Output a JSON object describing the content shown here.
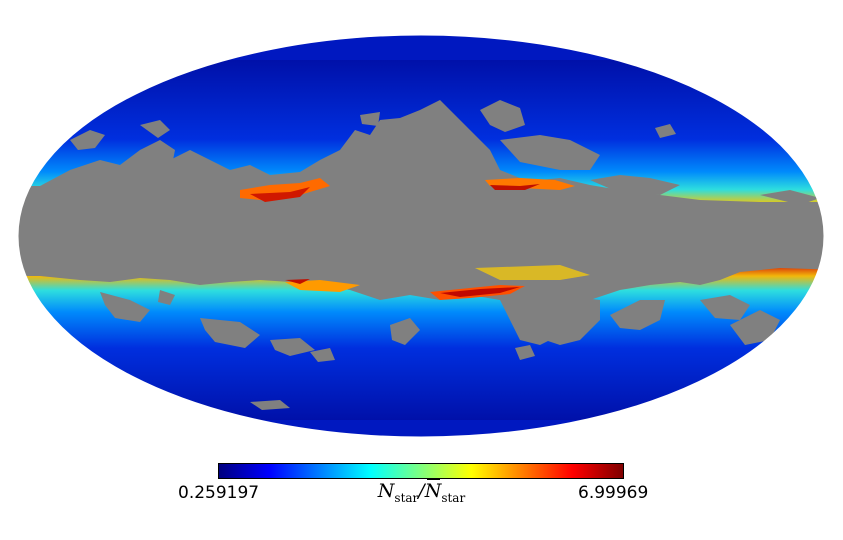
{
  "projection": "mollweide",
  "map": {
    "description_colors": {
      "masked_region": "#808080",
      "high_latitude": "#0018b8",
      "mid": "#20c8ff",
      "high_density": "#ffb000",
      "peak": "#c00000"
    }
  },
  "colorbar": {
    "min_label": "0.259197",
    "max_label": "6.99969",
    "colormap": [
      "#00007f",
      "#0000ff",
      "#007fff",
      "#00ffff",
      "#7fff7f",
      "#ffff00",
      "#ff7f00",
      "#ff0000",
      "#7f0000"
    ],
    "title_main": "N",
    "title_sub": "star",
    "title_sep": "/",
    "title_bar": "N",
    "title_bar_sub": "star"
  }
}
